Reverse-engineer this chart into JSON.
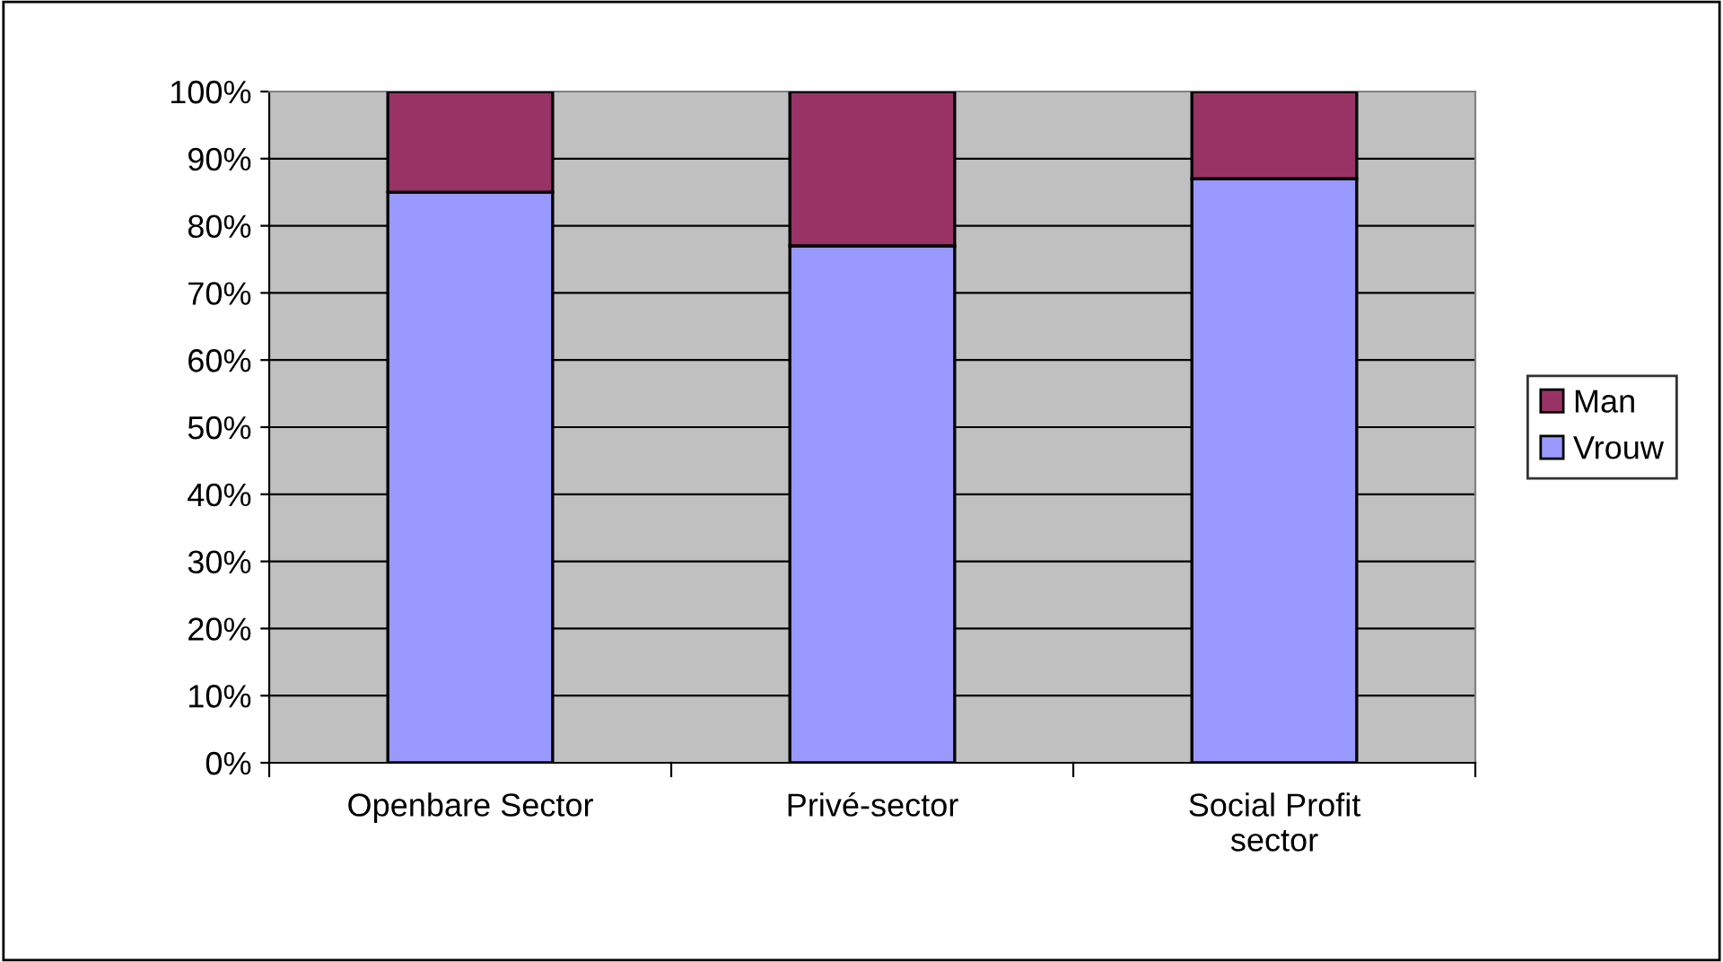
{
  "chart_data": {
    "type": "bar",
    "stacked": true,
    "categories": [
      "Openbare Sector",
      "Privé-sector",
      "Social Profit\nsector"
    ],
    "series": [
      {
        "name": "Vrouw",
        "color": "#9999ff",
        "values": [
          85,
          77,
          87
        ]
      },
      {
        "name": "Man",
        "color": "#993366",
        "values": [
          15,
          23,
          13
        ]
      }
    ],
    "ylim": [
      0,
      100
    ],
    "yticks": [
      {
        "value": 0,
        "label": "0%"
      },
      {
        "value": 10,
        "label": "10%"
      },
      {
        "value": 20,
        "label": "20%"
      },
      {
        "value": 30,
        "label": "30%"
      },
      {
        "value": 40,
        "label": "40%"
      },
      {
        "value": 50,
        "label": "50%"
      },
      {
        "value": 60,
        "label": "60%"
      },
      {
        "value": 70,
        "label": "70%"
      },
      {
        "value": 80,
        "label": "80%"
      },
      {
        "value": 90,
        "label": "90%"
      },
      {
        "value": 100,
        "label": "100%"
      }
    ],
    "grid": "y",
    "legend": "right"
  }
}
